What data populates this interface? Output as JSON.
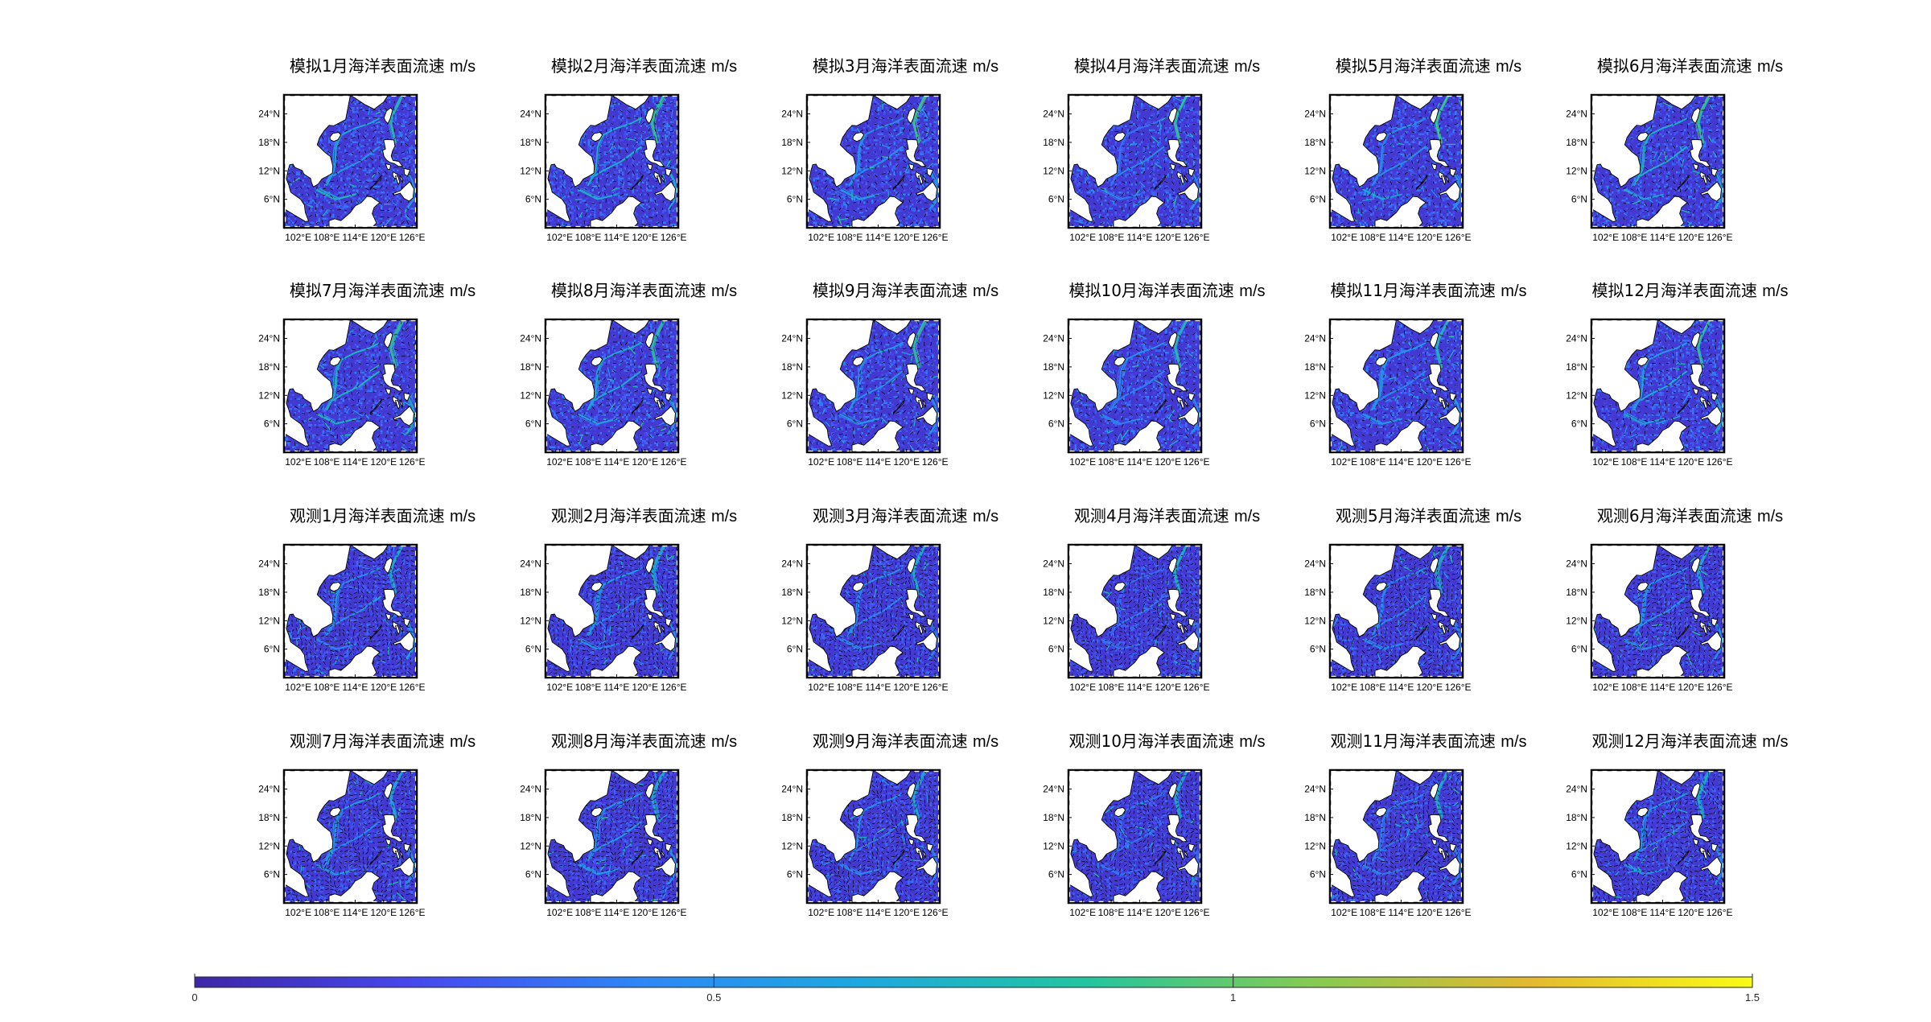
{
  "figure": {
    "panels": [
      {
        "title": "模拟1月海洋表面流速",
        "unit": "m/s",
        "group": "模拟",
        "month": 1
      },
      {
        "title": "模拟2月海洋表面流速",
        "unit": "m/s",
        "group": "模拟",
        "month": 2
      },
      {
        "title": "模拟3月海洋表面流速",
        "unit": "m/s",
        "group": "模拟",
        "month": 3
      },
      {
        "title": "模拟4月海洋表面流速",
        "unit": "m/s",
        "group": "模拟",
        "month": 4
      },
      {
        "title": "模拟5月海洋表面流速",
        "unit": "m/s",
        "group": "模拟",
        "month": 5
      },
      {
        "title": "模拟6月海洋表面流速",
        "unit": "m/s",
        "group": "模拟",
        "month": 6
      },
      {
        "title": "模拟7月海洋表面流速",
        "unit": "m/s",
        "group": "模拟",
        "month": 7
      },
      {
        "title": "模拟8月海洋表面流速",
        "unit": "m/s",
        "group": "模拟",
        "month": 8
      },
      {
        "title": "模拟9月海洋表面流速",
        "unit": "m/s",
        "group": "模拟",
        "month": 9
      },
      {
        "title": "模拟10月海洋表面流速",
        "unit": "m/s",
        "group": "模拟",
        "month": 10
      },
      {
        "title": "模拟11月海洋表面流速",
        "unit": "m/s",
        "group": "模拟",
        "month": 11
      },
      {
        "title": "模拟12月海洋表面流速",
        "unit": "m/s",
        "group": "模拟",
        "month": 12
      },
      {
        "title": "观测1月海洋表面流速",
        "unit": "m/s",
        "group": "观测",
        "month": 1
      },
      {
        "title": "观测2月海洋表面流速",
        "unit": "m/s",
        "group": "观测",
        "month": 2
      },
      {
        "title": "观测3月海洋表面流速",
        "unit": "m/s",
        "group": "观测",
        "month": 3
      },
      {
        "title": "观测4月海洋表面流速",
        "unit": "m/s",
        "group": "观测",
        "month": 4
      },
      {
        "title": "观测5月海洋表面流速",
        "unit": "m/s",
        "group": "观测",
        "month": 5
      },
      {
        "title": "观测6月海洋表面流速",
        "unit": "m/s",
        "group": "观测",
        "month": 6
      },
      {
        "title": "观测7月海洋表面流速",
        "unit": "m/s",
        "group": "观测",
        "month": 7
      },
      {
        "title": "观测8月海洋表面流速",
        "unit": "m/s",
        "group": "观测",
        "month": 8
      },
      {
        "title": "观测9月海洋表面流速",
        "unit": "m/s",
        "group": "观测",
        "month": 9
      },
      {
        "title": "观测10月海洋表面流速",
        "unit": "m/s",
        "group": "观测",
        "month": 10
      },
      {
        "title": "观测11月海洋表面流速",
        "unit": "m/s",
        "group": "观测",
        "month": 11
      },
      {
        "title": "观测12月海洋表面流速",
        "unit": "m/s",
        "group": "观测",
        "month": 12
      }
    ],
    "map_axes": {
      "lat_ticks": [
        "24°N",
        "18°N",
        "12°N",
        "6°N"
      ],
      "lon_ticks": [
        "102°E",
        "108°E",
        "114°E",
        "120°E",
        "126°E"
      ]
    },
    "colorbar": {
      "ticks": [
        "0",
        "0.5",
        "1",
        "1.5"
      ],
      "colormap": [
        "#3e26a8",
        "#4748f0",
        "#2e87f7",
        "#1ca9df",
        "#22c5a0",
        "#83cb53",
        "#e3b92f",
        "#f9fb15"
      ]
    }
  },
  "chart_data": {
    "type": "heatmap",
    "variable": "海洋表面流速",
    "unit": "m/s",
    "groups": [
      "模拟",
      "观测"
    ],
    "months": [
      1,
      2,
      3,
      4,
      5,
      6,
      7,
      8,
      9,
      10,
      11,
      12
    ],
    "lon_range": [
      99,
      127
    ],
    "lat_range": [
      0,
      28
    ],
    "lat_ticks": [
      24,
      18,
      12,
      6
    ],
    "lon_ticks": [
      102,
      108,
      114,
      120,
      126
    ],
    "color_range": [
      0,
      1.5
    ],
    "colorbar_ticks": [
      0,
      0.5,
      1,
      1.5
    ],
    "grid": false,
    "legend": "colorbar bottom"
  }
}
